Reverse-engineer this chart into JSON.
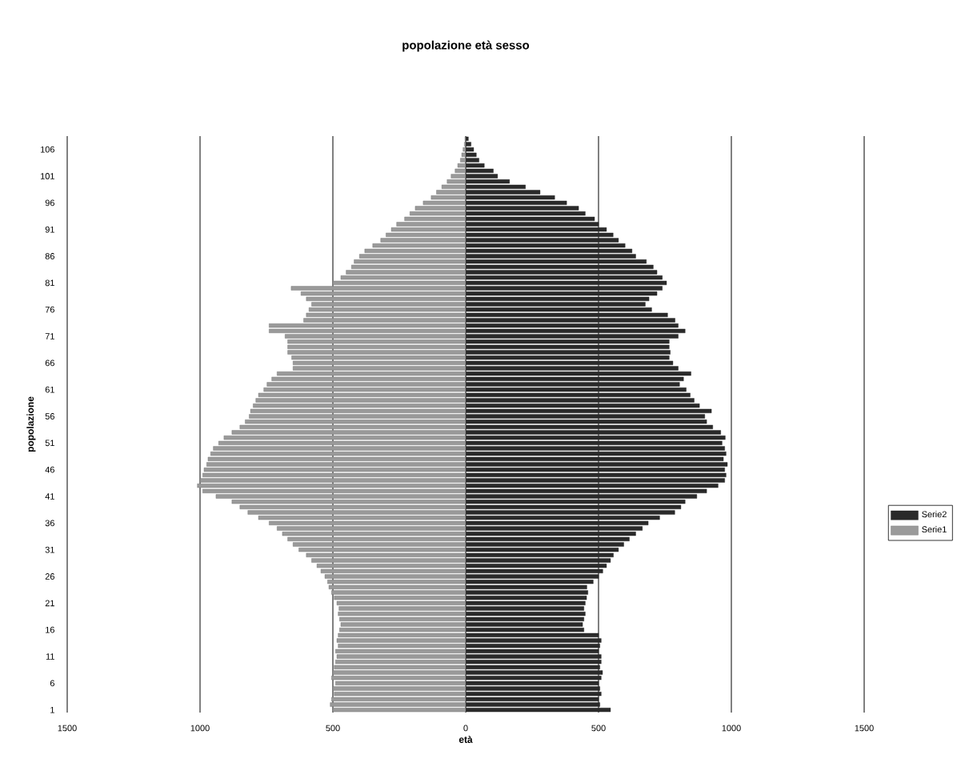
{
  "chart_data": {
    "type": "bar",
    "orientation": "horizontal",
    "stacked": true,
    "title": "popolazione età sesso",
    "xlabel": "età",
    "ylabel": "popolazione",
    "categories": [
      null,
      null,
      "106",
      null,
      null,
      null,
      null,
      "101",
      null,
      null,
      null,
      null,
      "96",
      null,
      null,
      null,
      null,
      "91",
      null,
      null,
      null,
      null,
      "86",
      null,
      null,
      null,
      null,
      "81",
      null,
      null,
      null,
      null,
      "76",
      null,
      null,
      null,
      null,
      "71",
      null,
      null,
      null,
      null,
      "66",
      null,
      null,
      null,
      null,
      "61",
      null,
      null,
      null,
      null,
      "56",
      null,
      null,
      null,
      null,
      "51",
      null,
      null,
      null,
      null,
      "46",
      null,
      null,
      null,
      null,
      "41",
      null,
      null,
      null,
      null,
      "36",
      null,
      null,
      null,
      null,
      "31",
      null,
      null,
      null,
      null,
      "26",
      null,
      null,
      null,
      null,
      "21",
      null,
      null,
      null,
      null,
      "16",
      null,
      null,
      null,
      null,
      "11",
      null,
      null,
      null,
      null,
      "6",
      null,
      null,
      null,
      null,
      "1"
    ],
    "series": [
      {
        "name": "Serie1",
        "color": "#9a9a9a",
        "values": [
          -3,
          -5,
          -10,
          -15,
          -20,
          -30,
          -40,
          -55,
          -70,
          -90,
          -110,
          -130,
          -160,
          -190,
          -210,
          -230,
          -260,
          -280,
          -300,
          -320,
          -350,
          -380,
          -400,
          -420,
          -430,
          -450,
          -470,
          -500,
          -657,
          -620,
          -600,
          -580,
          -590,
          -600,
          -610,
          -740,
          -740,
          -680,
          -670,
          -670,
          -670,
          -655,
          -650,
          -650,
          -710,
          -730,
          -748,
          -760,
          -780,
          -790,
          -800,
          -810,
          -815,
          -830,
          -850,
          -880,
          -910,
          -930,
          -950,
          -960,
          -970,
          -975,
          -985,
          -990,
          -1000,
          -1010,
          -990,
          -940,
          -880,
          -850,
          -820,
          -780,
          -740,
          -710,
          -690,
          -670,
          -650,
          -628,
          -600,
          -580,
          -560,
          -545,
          -530,
          -520,
          -515,
          -505,
          -495,
          -485,
          -477,
          -480,
          -475,
          -470,
          -475,
          -480,
          -485,
          -480,
          -490,
          -485,
          -490,
          -495,
          -500,
          -505,
          -490,
          -500,
          -495,
          -505,
          -510,
          -500
        ]
      },
      {
        "name": "Serie2",
        "color": "#2a2a2a",
        "values": [
          10,
          20,
          30,
          40,
          50,
          70,
          104,
          120,
          165,
          225,
          280,
          335,
          380,
          425,
          450,
          485,
          500,
          530,
          555,
          575,
          600,
          626,
          640,
          680,
          706,
          720,
          740,
          756,
          740,
          720,
          690,
          676,
          700,
          760,
          788,
          800,
          826,
          800,
          766,
          766,
          770,
          766,
          780,
          800,
          848,
          820,
          805,
          830,
          845,
          860,
          880,
          925,
          900,
          907,
          930,
          960,
          977,
          965,
          975,
          980,
          970,
          985,
          975,
          980,
          975,
          950,
          907,
          870,
          826,
          810,
          787,
          730,
          687,
          665,
          640,
          616,
          595,
          575,
          556,
          545,
          530,
          516,
          500,
          480,
          456,
          460,
          455,
          450,
          445,
          450,
          445,
          440,
          445,
          500,
          510,
          505,
          500,
          510,
          510,
          505,
          515,
          510,
          500,
          505,
          510,
          500,
          505,
          545
        ]
      }
    ],
    "xlim": [
      -1500,
      1500
    ],
    "xticks": [
      {
        "value": -1500,
        "label": "1500"
      },
      {
        "value": -1000,
        "label": "1000"
      },
      {
        "value": -500,
        "label": "500"
      },
      0,
      500,
      1000,
      1500
    ],
    "grid": "x",
    "legend": "right"
  }
}
